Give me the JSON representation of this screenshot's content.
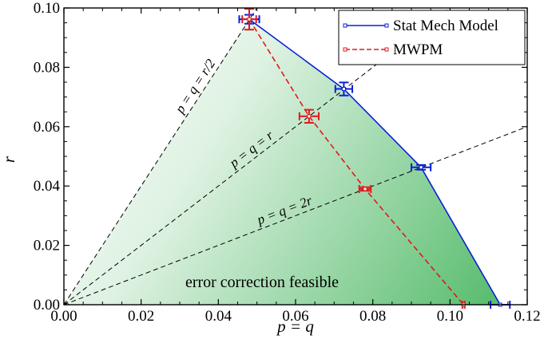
{
  "chart_data": {
    "type": "line",
    "xlabel": "p = q",
    "ylabel": "r",
    "xlim": [
      0.0,
      0.12
    ],
    "ylim": [
      0.0,
      0.1
    ],
    "x_ticks": [
      "0.00",
      "0.02",
      "0.04",
      "0.06",
      "0.08",
      "0.10",
      "0.12"
    ],
    "y_ticks": [
      "0.00",
      "0.02",
      "0.04",
      "0.06",
      "0.08",
      "0.10"
    ],
    "legend_position": "top-right",
    "series": [
      {
        "name": "Stat Mech Model",
        "color": "#0a1fd6",
        "style": "solid",
        "marker": "square",
        "points": [
          {
            "x": 0.048,
            "y": 0.0962,
            "xerr": 0.0026,
            "yerr": 0.0015
          },
          {
            "x": 0.0725,
            "y": 0.0727,
            "xerr": 0.0022,
            "yerr": 0.0022
          },
          {
            "x": 0.0925,
            "y": 0.0463,
            "xerr": 0.0025,
            "yerr": 0.0008
          },
          {
            "x": 0.113,
            "y": 0.0,
            "xerr": 0.0025,
            "yerr": 0.0
          }
        ]
      },
      {
        "name": "MWPM",
        "color": "#e0191d",
        "style": "dashed",
        "marker": "square",
        "points": [
          {
            "x": 0.048,
            "y": 0.0962,
            "xerr": 0.0018,
            "yerr": 0.0035
          },
          {
            "x": 0.0635,
            "y": 0.0635,
            "xerr": 0.0025,
            "yerr": 0.0022
          },
          {
            "x": 0.078,
            "y": 0.039,
            "xerr": 0.0015,
            "yerr": 0.0006
          },
          {
            "x": 0.1035,
            "y": 0.0,
            "xerr": 0.0003,
            "yerr": 0.0
          }
        ]
      }
    ],
    "guide_lines": [
      {
        "label": "p = q = r/2",
        "slope": 2.0
      },
      {
        "label": "p = q = r",
        "slope": 1.0
      },
      {
        "label": "p = q = 2r",
        "slope": 0.5
      }
    ],
    "region_label": "error correction feasible",
    "region_color": "#4db864"
  }
}
